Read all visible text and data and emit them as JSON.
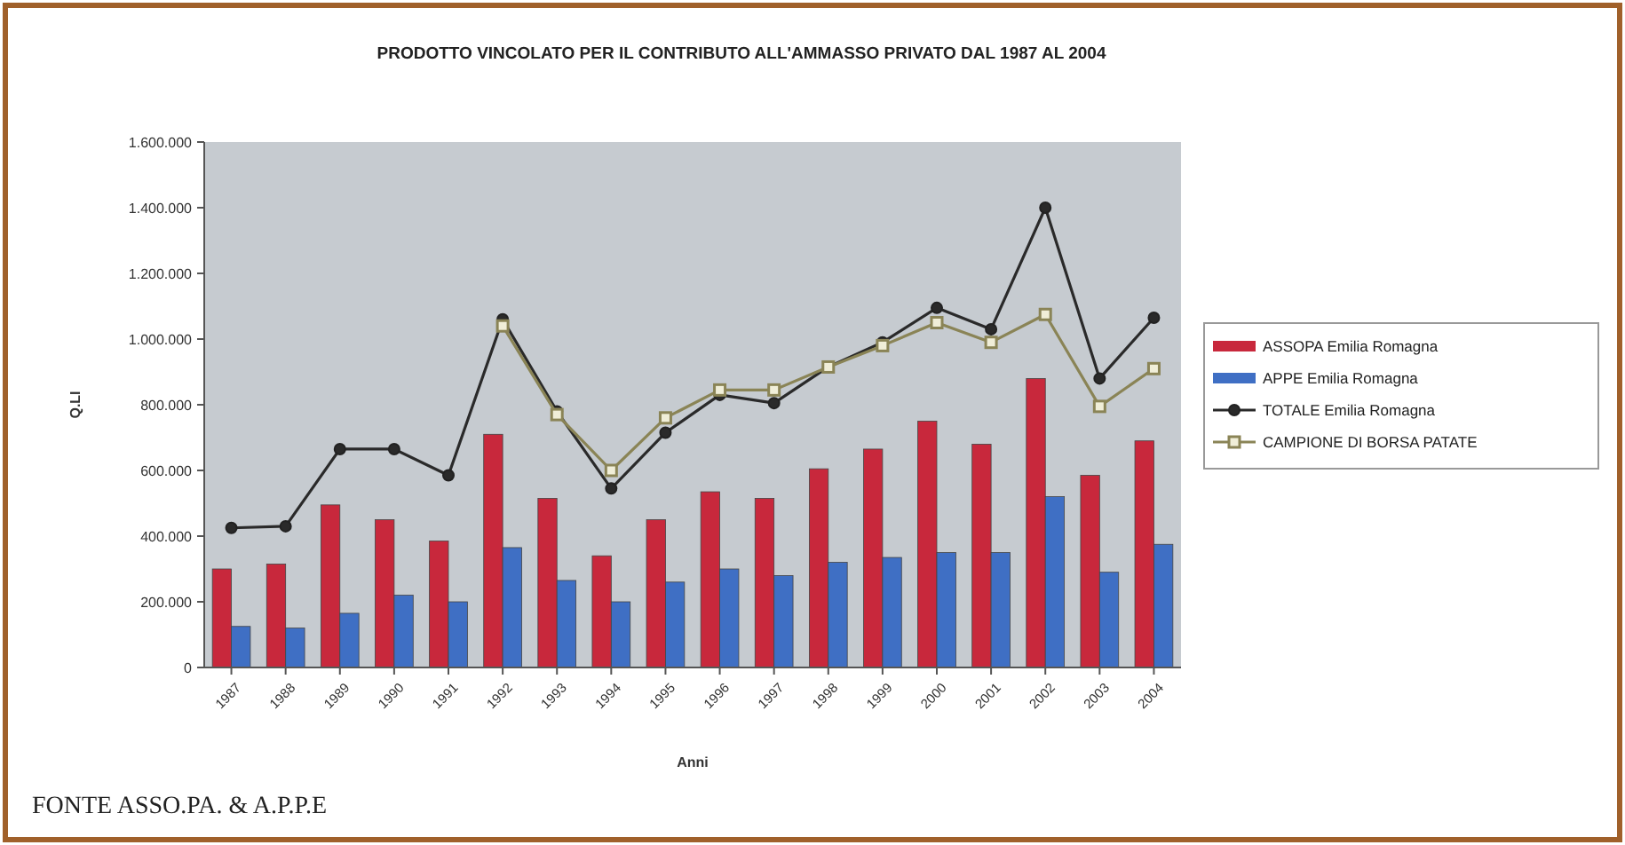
{
  "chart_data": {
    "type": "bar",
    "title": "PRODOTTO VINCOLATO PER IL CONTRIBUTO ALL'AMMASSO PRIVATO DAL 1987 AL 2004",
    "xlabel": "Anni",
    "ylabel": "Q.LI",
    "categories": [
      "1987",
      "1988",
      "1989",
      "1990",
      "1991",
      "1992",
      "1993",
      "1994",
      "1995",
      "1996",
      "1997",
      "1998",
      "1999",
      "2000",
      "2001",
      "2002",
      "2003",
      "2004"
    ],
    "series": [
      {
        "name": "ASSOPA Emilia Romagna",
        "color": "#c8283c",
        "values": [
          300000,
          315000,
          495000,
          450000,
          385000,
          710000,
          515000,
          340000,
          450000,
          535000,
          515000,
          605000,
          665000,
          750000,
          680000,
          880000,
          585000,
          690000
        ]
      },
      {
        "name": "APPE Emilia Romagna",
        "color": "#3f6fc4",
        "values": [
          125000,
          120000,
          165000,
          220000,
          200000,
          365000,
          265000,
          200000,
          260000,
          300000,
          280000,
          320000,
          335000,
          350000,
          350000,
          520000,
          290000,
          375000
        ]
      },
      {
        "name": "TOTALE Emilia Romagna",
        "type": "line",
        "color": "#2a2a2a",
        "marker": "circle",
        "values": [
          425000,
          430000,
          665000,
          665000,
          585000,
          1060000,
          780000,
          545000,
          715000,
          830000,
          805000,
          915000,
          990000,
          1095000,
          1030000,
          1400000,
          880000,
          1065000
        ]
      },
      {
        "name": "CAMPIONE DI BORSA PATATE",
        "type": "line",
        "color": "#8a8456",
        "marker": "square",
        "values": [
          null,
          null,
          null,
          null,
          null,
          1040000,
          770000,
          600000,
          760000,
          845000,
          845000,
          915000,
          980000,
          1050000,
          990000,
          1075000,
          795000,
          910000
        ]
      }
    ],
    "ylim": [
      0,
      1600000
    ],
    "yticks": [
      {
        "value": 0,
        "label": "0"
      },
      {
        "value": 200000,
        "label": "200.000"
      },
      {
        "value": 400000,
        "label": "400.000"
      },
      {
        "value": 600000,
        "label": "600.000"
      },
      {
        "value": 800000,
        "label": "800.000"
      },
      {
        "value": 1000000,
        "label": "1.000.000"
      },
      {
        "value": 1200000,
        "label": "1.200.000"
      },
      {
        "value": 1400000,
        "label": "1.400.000"
      },
      {
        "value": 1600000,
        "label": "1.600.000"
      }
    ],
    "grid": false,
    "legend": "right",
    "annotations": [
      "FONTE ASSO.PA. & A.P.P.E"
    ]
  }
}
